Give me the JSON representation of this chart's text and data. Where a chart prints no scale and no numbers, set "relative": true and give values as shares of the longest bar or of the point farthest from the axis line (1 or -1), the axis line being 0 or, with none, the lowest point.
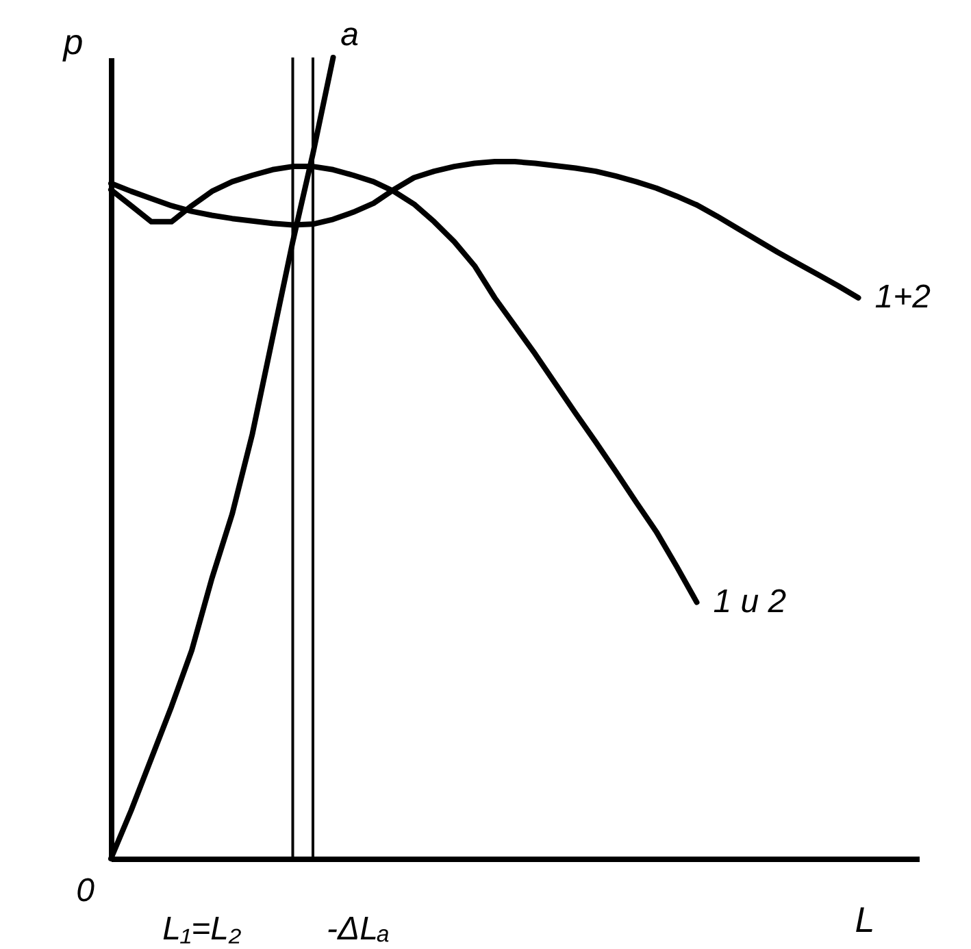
{
  "chart_data": {
    "type": "line",
    "relative": true,
    "xlabel": "L",
    "ylabel": "p",
    "categories": [
      null,
      null,
      null,
      null,
      null,
      null,
      null,
      null,
      null,
      null,
      null,
      null,
      null,
      null,
      null,
      null,
      null,
      null,
      null,
      null,
      null,
      null,
      null,
      null,
      null,
      null,
      null,
      null,
      null,
      null,
      null,
      null,
      null,
      null,
      null,
      null,
      null,
      null,
      null,
      null,
      null
    ],
    "series": [
      {
        "name": "a",
        "color": "#000000",
        "values": [
          0,
          0.06,
          0.125,
          0.19,
          0.26,
          0.35,
          0.43,
          0.53,
          0.65,
          0.77,
          0.88,
          1.0,
          null,
          null,
          null,
          null,
          null,
          null,
          null,
          null,
          null,
          null,
          null,
          null,
          null,
          null,
          null,
          null,
          null,
          null,
          null,
          null,
          null,
          null,
          null,
          null,
          null,
          null,
          null,
          null,
          null
        ]
      },
      {
        "name": "1+2",
        "color": "#000000",
        "values": [
          0.843,
          0.833,
          0.824,
          0.815,
          0.808,
          0.803,
          0.799,
          0.796,
          0.793,
          0.791,
          0.792,
          0.798,
          0.807,
          0.818,
          0.835,
          0.85,
          0.858,
          0.864,
          0.868,
          0.87,
          0.87,
          0.868,
          0.865,
          0.862,
          0.858,
          0.852,
          0.845,
          0.837,
          0.827,
          0.816,
          0.802,
          0.787,
          0.772,
          0.757,
          0.743,
          0.729,
          0.715,
          0.7,
          null,
          null,
          null
        ]
      },
      {
        "name": "1 и 2",
        "color": "#000000",
        "values": [
          0.835,
          0.815,
          0.795,
          0.795,
          0.815,
          0.833,
          0.845,
          0.853,
          0.86,
          0.864,
          0.864,
          0.86,
          0.853,
          0.845,
          0.833,
          0.817,
          0.795,
          0.77,
          0.74,
          0.7,
          0.665,
          0.63,
          0.593,
          0.556,
          0.52,
          0.483,
          0.445,
          0.408,
          0.365,
          0.32,
          null,
          null,
          null,
          null,
          null,
          null,
          null,
          null,
          null,
          null,
          null
        ]
      }
    ],
    "annotations": [
      "0",
      "L₁=L₂",
      "-ΔLₐ"
    ]
  }
}
